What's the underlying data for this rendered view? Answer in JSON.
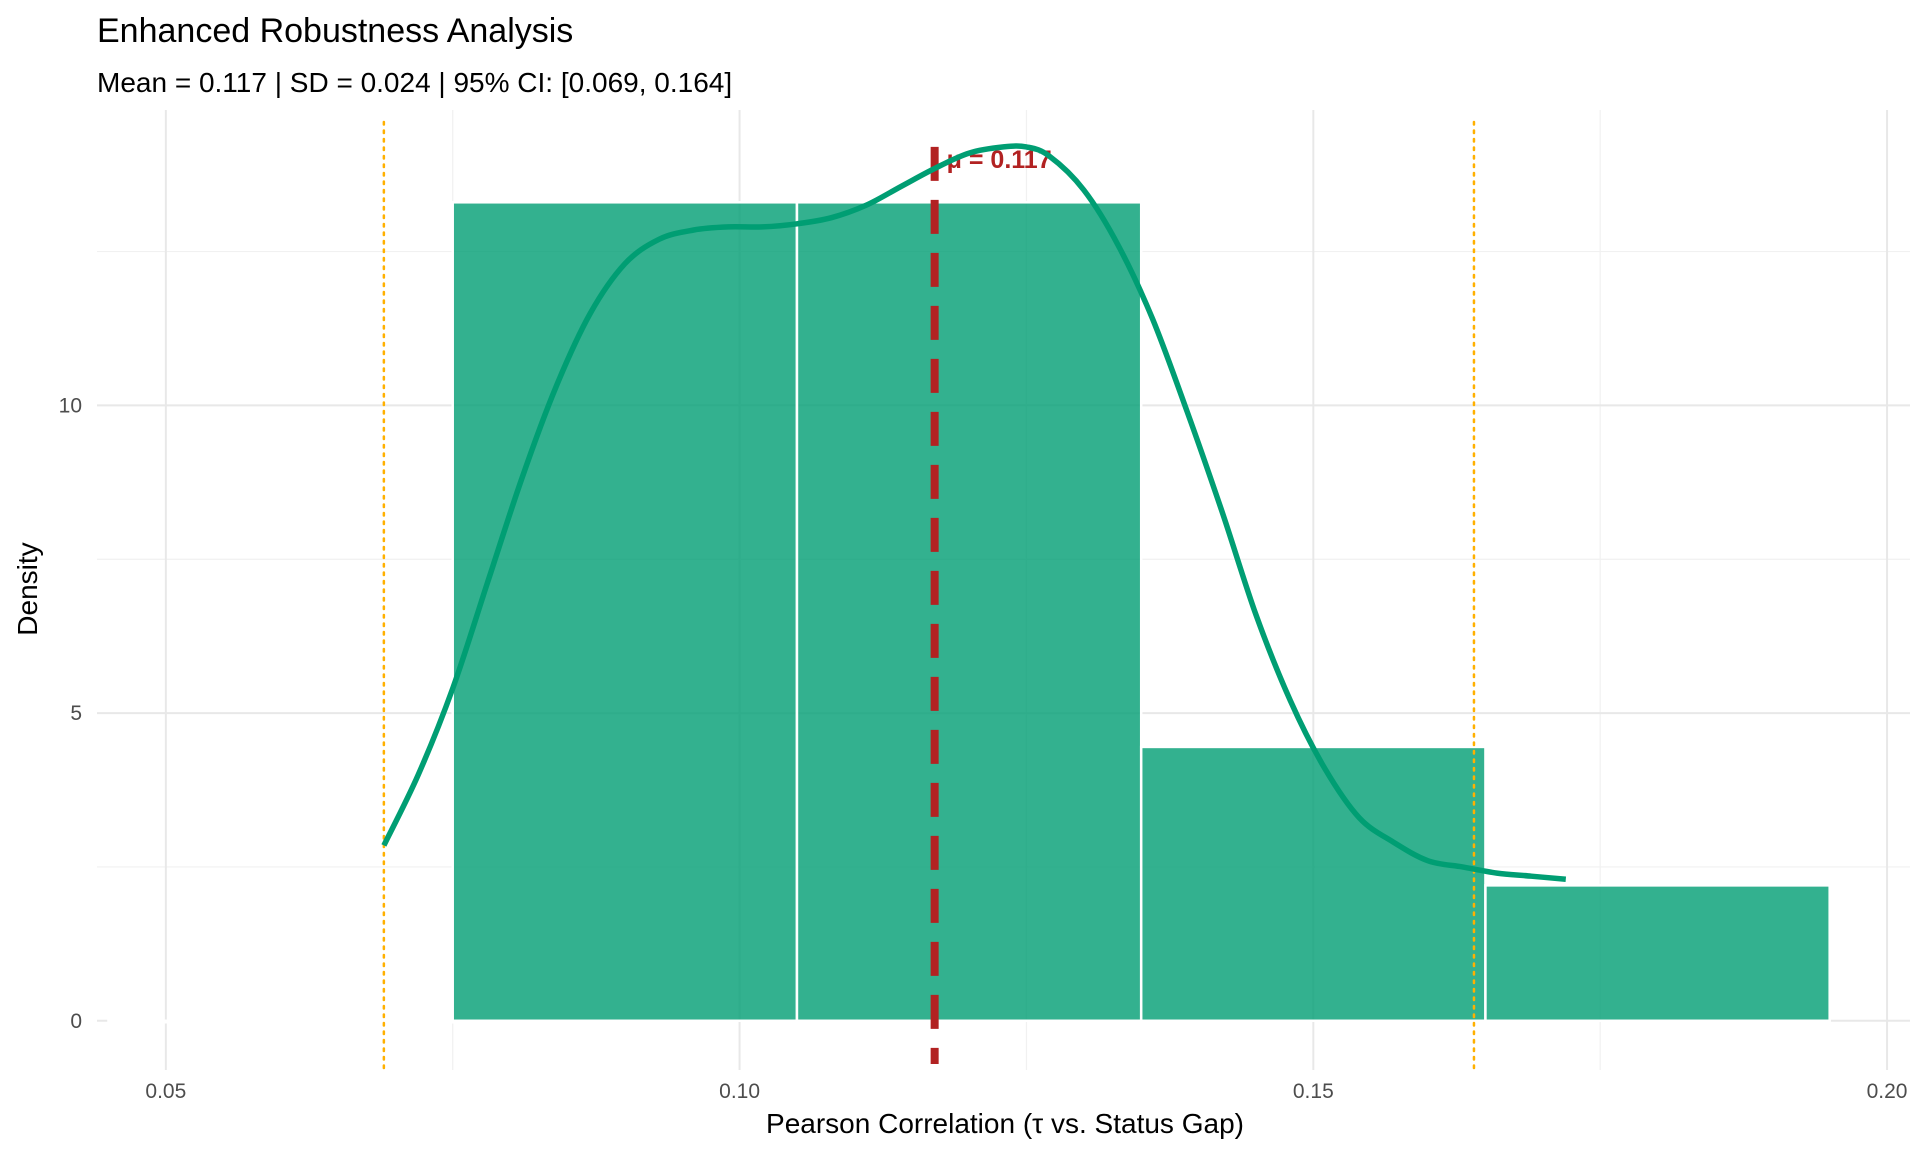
{
  "chart_data": {
    "type": "bar",
    "title": "Enhanced Robustness Analysis",
    "subtitle": "Mean = 0.117 | SD = 0.024 | 95% CI: [0.069, 0.164]",
    "xlabel": "Pearson Correlation (τ vs. Status Gap)",
    "ylabel": "Density",
    "xlim": [
      0.044,
      0.202
    ],
    "ylim": [
      -0.8,
      14.8
    ],
    "x_ticks": [
      0.05,
      0.1,
      0.15,
      0.2
    ],
    "x_tick_labels": [
      "0.05",
      "0.10",
      "0.15",
      "0.20"
    ],
    "y_ticks": [
      0,
      5,
      10
    ],
    "y_tick_labels": [
      "0",
      "5",
      "10"
    ],
    "grid": true,
    "histogram": {
      "bins": [
        {
          "x0": 0.045,
          "x1": 0.075,
          "density": 0
        },
        {
          "x0": 0.075,
          "x1": 0.105,
          "density": 13.3
        },
        {
          "x0": 0.105,
          "x1": 0.135,
          "density": 13.3
        },
        {
          "x0": 0.135,
          "x1": 0.165,
          "density": 4.45
        },
        {
          "x0": 0.165,
          "x1": 0.195,
          "density": 2.2
        }
      ],
      "color": "#009E73"
    },
    "density_curve": {
      "color": "#009E73",
      "x": [
        0.069,
        0.072,
        0.075,
        0.078,
        0.081,
        0.084,
        0.087,
        0.09,
        0.093,
        0.096,
        0.099,
        0.102,
        0.105,
        0.108,
        0.111,
        0.114,
        0.117,
        0.12,
        0.123,
        0.125,
        0.127,
        0.13,
        0.133,
        0.136,
        0.139,
        0.142,
        0.145,
        0.148,
        0.151,
        0.154,
        0.157,
        0.16,
        0.163,
        0.166,
        0.169,
        0.172
      ],
      "y": [
        2.85,
        4.0,
        5.4,
        7.1,
        8.8,
        10.3,
        11.5,
        12.3,
        12.7,
        12.85,
        12.9,
        12.9,
        12.95,
        13.05,
        13.25,
        13.55,
        13.85,
        14.1,
        14.2,
        14.2,
        14.05,
        13.5,
        12.6,
        11.4,
        9.9,
        8.3,
        6.6,
        5.2,
        4.1,
        3.3,
        2.9,
        2.6,
        2.5,
        2.4,
        2.35,
        2.3
      ]
    },
    "mean": {
      "value": 0.117,
      "label": "μ = 0.117",
      "color": "#b22222"
    },
    "ci": {
      "lower": 0.069,
      "upper": 0.164,
      "color": "#ffb000"
    }
  }
}
